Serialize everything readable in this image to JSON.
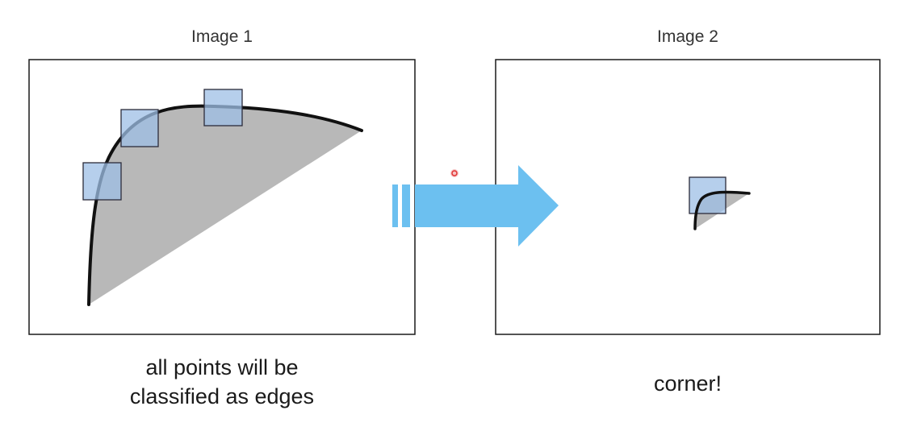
{
  "image1": {
    "title": "Image 1",
    "caption_line1": "all points will be",
    "caption_line2": "classified as edges"
  },
  "image2": {
    "title": "Image 2",
    "caption": "corner!"
  },
  "colors": {
    "frame": "#1a1a1a",
    "curve": "#111111",
    "region_fill": "#b8b8b8",
    "window_fill": "#9dbfe6",
    "window_stroke": "#2b2b3a",
    "arrow": "#6cc0f0",
    "cursor": "#e03030"
  }
}
